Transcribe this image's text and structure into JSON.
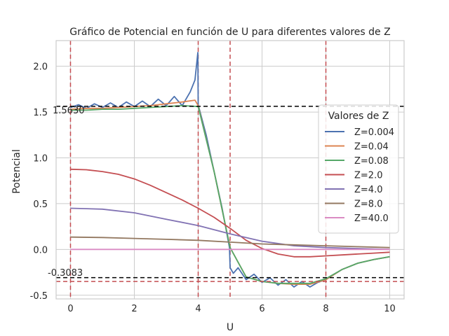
{
  "chart_data": {
    "type": "line",
    "title": "Gráfico de Potencial en función de U para diferentes valores de Z",
    "xlabel": "U",
    "ylabel": "Potencial",
    "xlim": [
      -0.45,
      10.45
    ],
    "ylim": [
      -0.54,
      2.28
    ],
    "xticks": [
      0,
      2,
      4,
      6,
      8,
      10
    ],
    "yticks": [
      -0.5,
      0.0,
      0.5,
      1.0,
      1.5,
      2.0
    ],
    "grid": true,
    "legend": {
      "title": "Valores de Z",
      "placement": "right"
    },
    "annotations": [
      "1.5630",
      "-0.3083"
    ],
    "hlines": [
      {
        "y": 1.563,
        "style": "dashed",
        "color": "#000000"
      },
      {
        "y": -0.3083,
        "style": "dashed",
        "color": "#000000"
      },
      {
        "y": -0.35,
        "style": "dashed",
        "color": "#c44e52"
      }
    ],
    "vlines": [
      {
        "x": 0,
        "style": "dashed",
        "color": "#c44e52"
      },
      {
        "x": 4,
        "style": "dashed",
        "color": "#c44e52"
      },
      {
        "x": 5,
        "style": "dashed",
        "color": "#c44e52"
      },
      {
        "x": 8,
        "style": "dashed",
        "color": "#c44e52"
      }
    ],
    "series": [
      {
        "name": "Z=0.004",
        "color": "#4c72b0",
        "x": [
          0,
          0.25,
          0.5,
          0.75,
          1,
          1.25,
          1.5,
          1.75,
          2,
          2.25,
          2.5,
          2.75,
          3,
          3.25,
          3.5,
          3.75,
          3.9,
          3.99,
          4,
          4.25,
          4.5,
          4.75,
          4.98,
          5,
          5.1,
          5.25,
          5.5,
          5.75,
          6,
          6.25,
          6.5,
          6.75,
          7,
          7.25,
          7.5,
          7.75,
          8,
          8.5,
          9,
          9.5,
          10
        ],
        "y": [
          1.55,
          1.58,
          1.54,
          1.59,
          1.55,
          1.6,
          1.55,
          1.61,
          1.56,
          1.62,
          1.56,
          1.64,
          1.57,
          1.67,
          1.57,
          1.72,
          1.85,
          2.15,
          1.58,
          1.25,
          0.85,
          0.45,
          0.02,
          -0.2,
          -0.26,
          -0.2,
          -0.33,
          -0.27,
          -0.36,
          -0.31,
          -0.39,
          -0.33,
          -0.41,
          -0.35,
          -0.41,
          -0.36,
          -0.33,
          -0.22,
          -0.15,
          -0.11,
          -0.08
        ]
      },
      {
        "name": "Z=0.04",
        "color": "#dd8452",
        "x": [
          0,
          0.5,
          1,
          1.5,
          2,
          2.5,
          3,
          3.5,
          3.9,
          4,
          4.5,
          5,
          5.5,
          6,
          6.5,
          7,
          7.5,
          8,
          8.5,
          9,
          9.5,
          10
        ],
        "y": [
          1.53,
          1.54,
          1.54,
          1.55,
          1.56,
          1.57,
          1.59,
          1.61,
          1.63,
          1.57,
          0.85,
          0.02,
          -0.3,
          -0.35,
          -0.37,
          -0.38,
          -0.38,
          -0.33,
          -0.22,
          -0.15,
          -0.11,
          -0.08
        ]
      },
      {
        "name": "Z=0.08",
        "color": "#55a868",
        "x": [
          0,
          0.5,
          1,
          1.5,
          2,
          2.5,
          3,
          3.5,
          4,
          4.5,
          5,
          5.5,
          6,
          6.5,
          7,
          7.5,
          8,
          8.5,
          9,
          9.5,
          10
        ],
        "y": [
          1.52,
          1.52,
          1.53,
          1.53,
          1.54,
          1.55,
          1.56,
          1.57,
          1.56,
          0.85,
          0.02,
          -0.3,
          -0.35,
          -0.37,
          -0.37,
          -0.37,
          -0.32,
          -0.22,
          -0.15,
          -0.11,
          -0.08
        ]
      },
      {
        "name": "Z=2.0",
        "color": "#c44e52",
        "x": [
          0,
          0.5,
          1,
          1.5,
          2,
          2.5,
          3,
          3.5,
          4,
          4.5,
          5,
          5.5,
          6,
          6.5,
          7,
          7.5,
          8,
          8.5,
          9,
          9.5,
          10
        ],
        "y": [
          0.875,
          0.87,
          0.85,
          0.82,
          0.77,
          0.7,
          0.62,
          0.54,
          0.45,
          0.35,
          0.23,
          0.1,
          0.01,
          -0.05,
          -0.08,
          -0.08,
          -0.07,
          -0.06,
          -0.05,
          -0.04,
          -0.03
        ]
      },
      {
        "name": "Z=4.0",
        "color": "#8172b3",
        "x": [
          0,
          1,
          2,
          3,
          4,
          5,
          6,
          7,
          8,
          9,
          10
        ],
        "y": [
          0.45,
          0.44,
          0.4,
          0.33,
          0.26,
          0.17,
          0.09,
          0.04,
          0.02,
          0.01,
          0.0
        ]
      },
      {
        "name": "Z=8.0",
        "color": "#937860",
        "x": [
          0,
          1,
          2,
          3,
          4,
          5,
          6,
          7,
          8,
          9,
          10
        ],
        "y": [
          0.135,
          0.13,
          0.12,
          0.11,
          0.1,
          0.08,
          0.06,
          0.05,
          0.04,
          0.03,
          0.02
        ]
      },
      {
        "name": "Z=40.0",
        "color": "#da8bc3",
        "x": [
          0,
          10
        ],
        "y": [
          0.0,
          0.0
        ]
      }
    ]
  }
}
